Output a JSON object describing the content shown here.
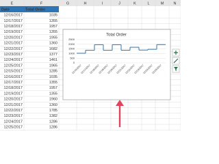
{
  "spreadsheet": {
    "columns": [
      "E",
      "F",
      "G",
      "H",
      "I",
      "J",
      "K",
      "L",
      "M",
      "N"
    ],
    "header": [
      "Date",
      "Total Order"
    ],
    "rows": [
      [
        "12/16/2017",
        1035
      ],
      [
        "12/17/2017",
        1355
      ],
      [
        "12/18/2017",
        1957
      ],
      [
        "12/19/2017",
        1355
      ],
      [
        "12/20/2017",
        1955
      ],
      [
        "12/21/2017",
        1360
      ],
      [
        "12/22/2017",
        1682
      ],
      [
        "12/23/2017",
        1377
      ],
      [
        "12/24/2017",
        1461
      ],
      [
        "12/25/2017",
        1965
      ],
      [
        "12/15/2017",
        1285
      ],
      [
        "12/16/2017",
        1035
      ],
      [
        "12/17/2017",
        1355
      ],
      [
        "12/18/2017",
        1957
      ],
      [
        "12/19/2017",
        1355
      ],
      [
        "12/20/2017",
        1960
      ],
      [
        "12/21/2017",
        1360
      ],
      [
        "12/22/2017",
        1785
      ],
      [
        "12/23/2017",
        1382
      ],
      [
        "12/24/2017",
        1286
      ],
      [
        "12/25/2017",
        1286
      ]
    ]
  },
  "chart_data": {
    "type": "step",
    "title": "Total Order",
    "categories": [
      "12/16/2017",
      "12/17/2017",
      "12/18/2017",
      "12/19/2017",
      "12/20/2017",
      "12/21/2017",
      "12/22/2017",
      "12/23/2017",
      "12/24/2017",
      "12/25/2017"
    ],
    "values": [
      1035,
      1355,
      1957,
      1355,
      1955,
      1360,
      1682,
      1377,
      1461,
      1965
    ],
    "color": "#2e75b6",
    "ylim": [
      0,
      2500
    ],
    "yticks": [
      0,
      500,
      1000,
      1500,
      2000,
      2500
    ],
    "grid": true
  }
}
